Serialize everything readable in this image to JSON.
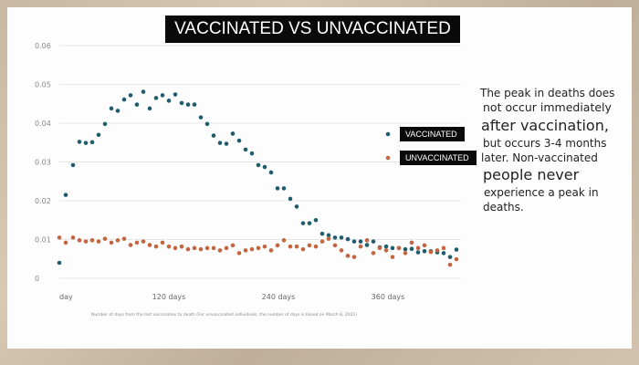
{
  "title": "VACCINATED VS UNVACCINATED",
  "side_text": [
    "The peak in deaths does",
    "not occur immediately",
    "after vaccination,",
    "but occurs 3-4 months",
    "later. Non-vaccinated",
    "people never",
    "experience a peak in",
    "deaths."
  ],
  "caption": "Number of days from the last vaccination to death (For unvaccinated individuals, the number of days is based on March 8, 2021)",
  "colors": {
    "vaccinated": "#1f5c6e",
    "unvaccinated": "#c4653f"
  },
  "chart_data": {
    "type": "scatter",
    "title": "VACCINATED VS UNVACCINATED",
    "xlabel": "Number of days from the last vaccination to death (For unvaccinated individuals, the number of days is based on March 8, 2021)",
    "ylabel": "",
    "xlim": [
      0,
      440
    ],
    "ylim": [
      0,
      0.06
    ],
    "x_ticks": [
      {
        "value": 0,
        "label": "day"
      },
      {
        "value": 120,
        "label": "120 days"
      },
      {
        "value": 240,
        "label": "240 days"
      },
      {
        "value": 360,
        "label": "360 days"
      }
    ],
    "y_ticks": [
      {
        "value": 0,
        "label": "0"
      },
      {
        "value": 0.01,
        "label": "0.01"
      },
      {
        "value": 0.02,
        "label": "0.02"
      },
      {
        "value": 0.03,
        "label": "0.03"
      },
      {
        "value": 0.04,
        "label": "0.04"
      },
      {
        "value": 0.05,
        "label": "0.05"
      },
      {
        "value": 0.06,
        "label": "0.06"
      }
    ],
    "grid": "horizontal",
    "legend_position": "right",
    "series": [
      {
        "name": "VACCINATED",
        "color": "#1f5c6e",
        "x": [
          0,
          7,
          15,
          22,
          29,
          36,
          43,
          50,
          57,
          64,
          71,
          78,
          85,
          92,
          99,
          106,
          113,
          120,
          127,
          134,
          141,
          148,
          155,
          162,
          169,
          176,
          183,
          190,
          197,
          204,
          211,
          218,
          225,
          232,
          239,
          246,
          253,
          260,
          267,
          274,
          281,
          288,
          295,
          302,
          309,
          316,
          323,
          330,
          337,
          344,
          351,
          358,
          365,
          372,
          379,
          386,
          393,
          400,
          407,
          414,
          421,
          428,
          435
        ],
        "y": [
          0.004,
          0.0215,
          0.0292,
          0.0352,
          0.0349,
          0.0351,
          0.037,
          0.0398,
          0.0438,
          0.0432,
          0.0461,
          0.0472,
          0.0448,
          0.0481,
          0.0438,
          0.0465,
          0.0472,
          0.0458,
          0.0474,
          0.0452,
          0.0448,
          0.0448,
          0.0415,
          0.0398,
          0.0368,
          0.0349,
          0.0347,
          0.0373,
          0.0355,
          0.0332,
          0.0322,
          0.0292,
          0.0287,
          0.0273,
          0.0232,
          0.0232,
          0.0205,
          0.0185,
          0.0142,
          0.0142,
          0.015,
          0.0115,
          0.0111,
          0.0105,
          0.0105,
          0.0101,
          0.0095,
          0.0095,
          0.0086,
          0.0095,
          0.008,
          0.0082,
          0.0078,
          0.0078,
          0.0075,
          0.0076,
          0.0067,
          0.007,
          0.007,
          0.0067,
          0.0065,
          0.0055,
          0.0074
        ]
      },
      {
        "name": "UNVACCINATED",
        "color": "#c4653f",
        "x": [
          0,
          7,
          15,
          22,
          29,
          36,
          43,
          50,
          57,
          64,
          71,
          78,
          85,
          92,
          99,
          106,
          113,
          120,
          127,
          134,
          141,
          148,
          155,
          162,
          169,
          176,
          183,
          190,
          197,
          204,
          211,
          218,
          225,
          232,
          239,
          246,
          253,
          260,
          267,
          274,
          281,
          288,
          295,
          302,
          309,
          316,
          323,
          330,
          337,
          344,
          351,
          358,
          365,
          372,
          379,
          386,
          393,
          400,
          407,
          414,
          421,
          428,
          435
        ],
        "y": [
          0.0105,
          0.0092,
          0.0105,
          0.0098,
          0.0095,
          0.0098,
          0.0095,
          0.0102,
          0.0092,
          0.0098,
          0.0102,
          0.0086,
          0.0092,
          0.0095,
          0.0086,
          0.0082,
          0.0092,
          0.0082,
          0.0078,
          0.0082,
          0.0075,
          0.0078,
          0.0075,
          0.0078,
          0.0078,
          0.0072,
          0.0078,
          0.0085,
          0.0065,
          0.0072,
          0.0075,
          0.0078,
          0.0082,
          0.0072,
          0.0085,
          0.0098,
          0.0082,
          0.0082,
          0.0075,
          0.0085,
          0.0082,
          0.0095,
          0.0102,
          0.0085,
          0.0072,
          0.0058,
          0.0055,
          0.0082,
          0.0098,
          0.0065,
          0.0078,
          0.0072,
          0.0055,
          0.0078,
          0.0065,
          0.0092,
          0.0078,
          0.0085,
          0.0068,
          0.0072,
          0.0078,
          0.0035,
          0.0049
        ]
      }
    ]
  }
}
